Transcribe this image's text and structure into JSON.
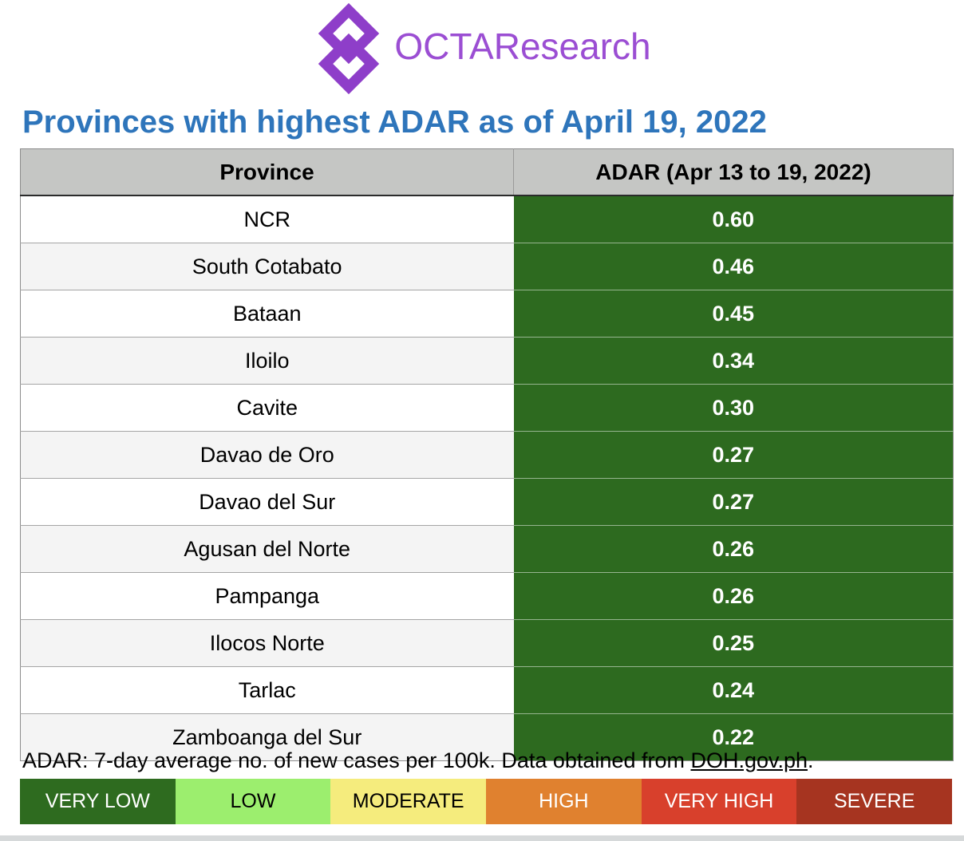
{
  "brand": {
    "name": "OCTAResearch",
    "icon_color": "#8E3EC9",
    "text_color": "#9B4ED3"
  },
  "title": {
    "text": "Provinces with highest ADAR as of April 19, 2022",
    "color": "#2E75BB"
  },
  "colors": {
    "header_gray": "#C5C6C4",
    "adar_green": "#2D6A1F"
  },
  "table": {
    "headers": [
      "Province",
      "ADAR (Apr 13 to 19, 2022)"
    ],
    "rows": [
      {
        "province": "NCR",
        "adar": "0.60"
      },
      {
        "province": "South Cotabato",
        "adar": "0.46"
      },
      {
        "province": "Bataan",
        "adar": "0.45"
      },
      {
        "province": "Iloilo",
        "adar": "0.34"
      },
      {
        "province": "Cavite",
        "adar": "0.30"
      },
      {
        "province": "Davao de Oro",
        "adar": "0.27"
      },
      {
        "province": "Davao del Sur",
        "adar": "0.27"
      },
      {
        "province": "Agusan del Norte",
        "adar": "0.26"
      },
      {
        "province": "Pampanga",
        "adar": "0.26"
      },
      {
        "province": "Ilocos Norte",
        "adar": "0.25"
      },
      {
        "province": "Tarlac",
        "adar": "0.24"
      },
      {
        "province": "Zamboanga del Sur",
        "adar": "0.22"
      }
    ]
  },
  "footnote": {
    "prefix": "ADAR: 7-day average no. of new cases per 100k. Data obtained from ",
    "link": "DOH.gov.ph",
    "suffix": "."
  },
  "legend": {
    "items": [
      {
        "label": "VERY LOW",
        "color": "#2E6B1F",
        "text_color": "#FFFFFF"
      },
      {
        "label": "LOW",
        "color": "#9CEE6E",
        "text_color": "#000000"
      },
      {
        "label": "MODERATE",
        "color": "#F5EC7D",
        "text_color": "#000000"
      },
      {
        "label": "HIGH",
        "color": "#E0812F",
        "text_color": "#FFFFFF"
      },
      {
        "label": "VERY HIGH",
        "color": "#D8402C",
        "text_color": "#FFFFFF"
      },
      {
        "label": "SEVERE",
        "color": "#A63420",
        "text_color": "#FFFFFF"
      }
    ]
  },
  "chart_data": {
    "type": "table",
    "title": "Provinces with highest ADAR as of April 19, 2022",
    "columns": [
      "Province",
      "ADAR (Apr 13 to 19, 2022)"
    ],
    "categories": [
      "NCR",
      "South Cotabato",
      "Bataan",
      "Iloilo",
      "Cavite",
      "Davao de Oro",
      "Davao del Sur",
      "Agusan del Norte",
      "Pampanga",
      "Ilocos Norte",
      "Tarlac",
      "Zamboanga del Sur"
    ],
    "values": [
      0.6,
      0.46,
      0.45,
      0.34,
      0.3,
      0.27,
      0.27,
      0.26,
      0.26,
      0.25,
      0.24,
      0.22
    ],
    "legend": [
      "VERY LOW",
      "LOW",
      "MODERATE",
      "HIGH",
      "VERY HIGH",
      "SEVERE"
    ],
    "note": "ADAR: 7-day average no. of new cases per 100k. Data obtained from DOH.gov.ph."
  }
}
